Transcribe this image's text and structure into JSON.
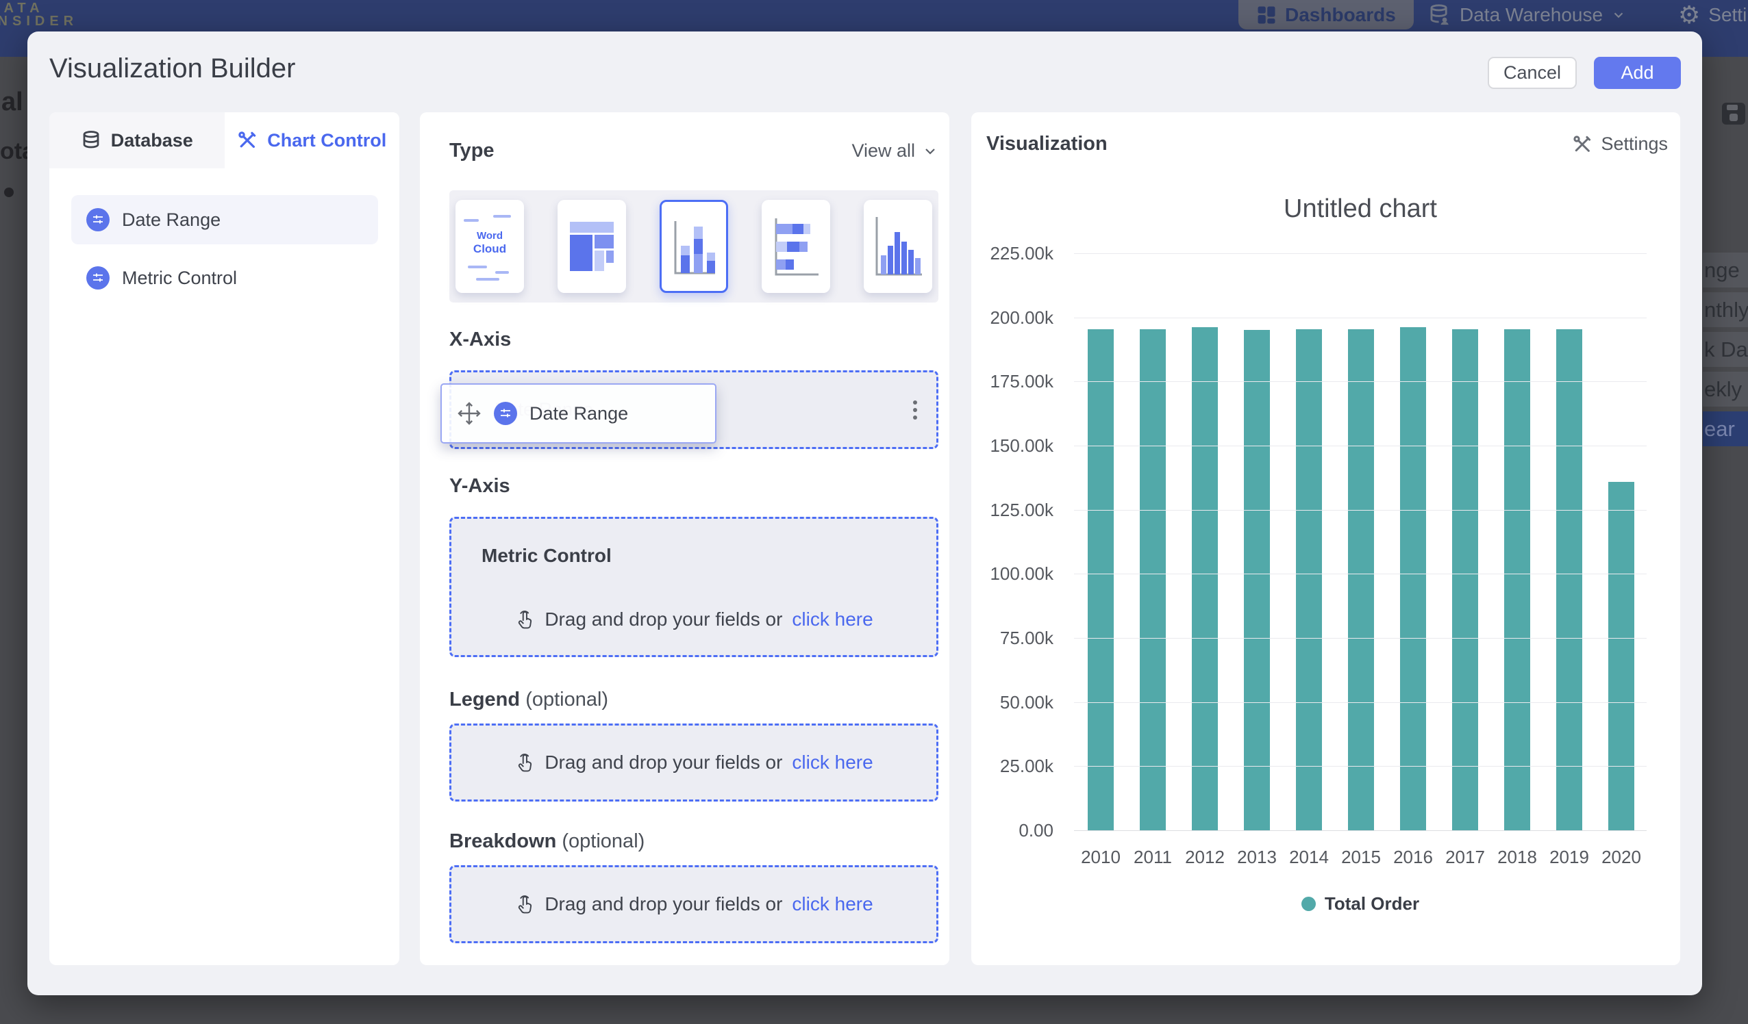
{
  "nav": {
    "logo": {
      "line1": "DATA",
      "line2": "INSIDER"
    },
    "items": [
      {
        "id": "dashboards",
        "label": "Dashboards",
        "active": true
      },
      {
        "id": "data-warehouse",
        "label": "Data Warehouse",
        "has_dropdown": true
      },
      {
        "id": "settings",
        "label": "Settings"
      }
    ]
  },
  "background": {
    "text_fragments": [
      "al",
      "ota"
    ],
    "dropdown_fragments": [
      {
        "label": "nge",
        "selected": false
      },
      {
        "label": "nthly",
        "selected": false
      },
      {
        "label": "k Date",
        "selected": false
      },
      {
        "label": "ekly",
        "selected": false
      },
      {
        "label": "ear",
        "selected": true
      }
    ]
  },
  "modal": {
    "title": "Visualization Builder",
    "buttons": {
      "cancel": "Cancel",
      "add": "Add"
    },
    "left_panel": {
      "tabs": [
        {
          "label": "Database",
          "active": false
        },
        {
          "label": "Chart Control",
          "active": true
        }
      ],
      "fields": [
        {
          "label": "Date Range",
          "highlighted": true
        },
        {
          "label": "Metric Control",
          "highlighted": false
        }
      ]
    },
    "builder": {
      "type": {
        "heading": "Type",
        "view_all": "View all",
        "selected_index": 2,
        "options": [
          "word-cloud",
          "treemap",
          "stacked-column",
          "stacked-bar",
          "column"
        ],
        "word_cloud_label": {
          "line1": "Word",
          "line2": "Cloud"
        }
      },
      "x_axis": {
        "heading": "X-Axis",
        "field": "Date Range"
      },
      "y_axis": {
        "heading": "Y-Axis",
        "group": "Metric Control",
        "drop_text": "Drag and drop your fields or",
        "drop_link": "click here"
      },
      "legend": {
        "heading": "Legend",
        "suffix": "(optional)",
        "drop_text": "Drag and drop your fields or",
        "drop_link": "click here"
      },
      "breakdown": {
        "heading": "Breakdown",
        "suffix": "(optional)",
        "drop_text": "Drag and drop your fields or",
        "drop_link": "click here"
      }
    },
    "visualization": {
      "heading": "Visualization",
      "settings": "Settings"
    }
  },
  "chart_data": {
    "type": "bar",
    "title": "Untitled chart",
    "categories": [
      "2010",
      "2011",
      "2012",
      "2013",
      "2014",
      "2015",
      "2016",
      "2017",
      "2018",
      "2019",
      "2020"
    ],
    "series": [
      {
        "name": "Total Order",
        "values": [
          195400,
          195400,
          196200,
          195100,
          195300,
          195300,
          196300,
          195500,
          195400,
          195400,
          135800
        ]
      }
    ],
    "ylim": [
      0,
      225000
    ],
    "ytick_step": 25000,
    "ytick_labels": [
      "225.00k",
      "200.00k",
      "175.00k",
      "150.00k",
      "125.00k",
      "100.00k",
      "75.00k",
      "50.00k",
      "25.00k",
      "0.00"
    ],
    "xlabel": "",
    "ylabel": "",
    "grid": true,
    "legend_position": "bottom",
    "bar_color": "#52a9a9"
  },
  "colors": {
    "accent": "#4c6ef5",
    "add_button": "#6379ee",
    "bar": "#52a9a9",
    "nav": "#2e3d6e",
    "link": "#4a68ee",
    "icon_circle": "#5b74eb"
  }
}
